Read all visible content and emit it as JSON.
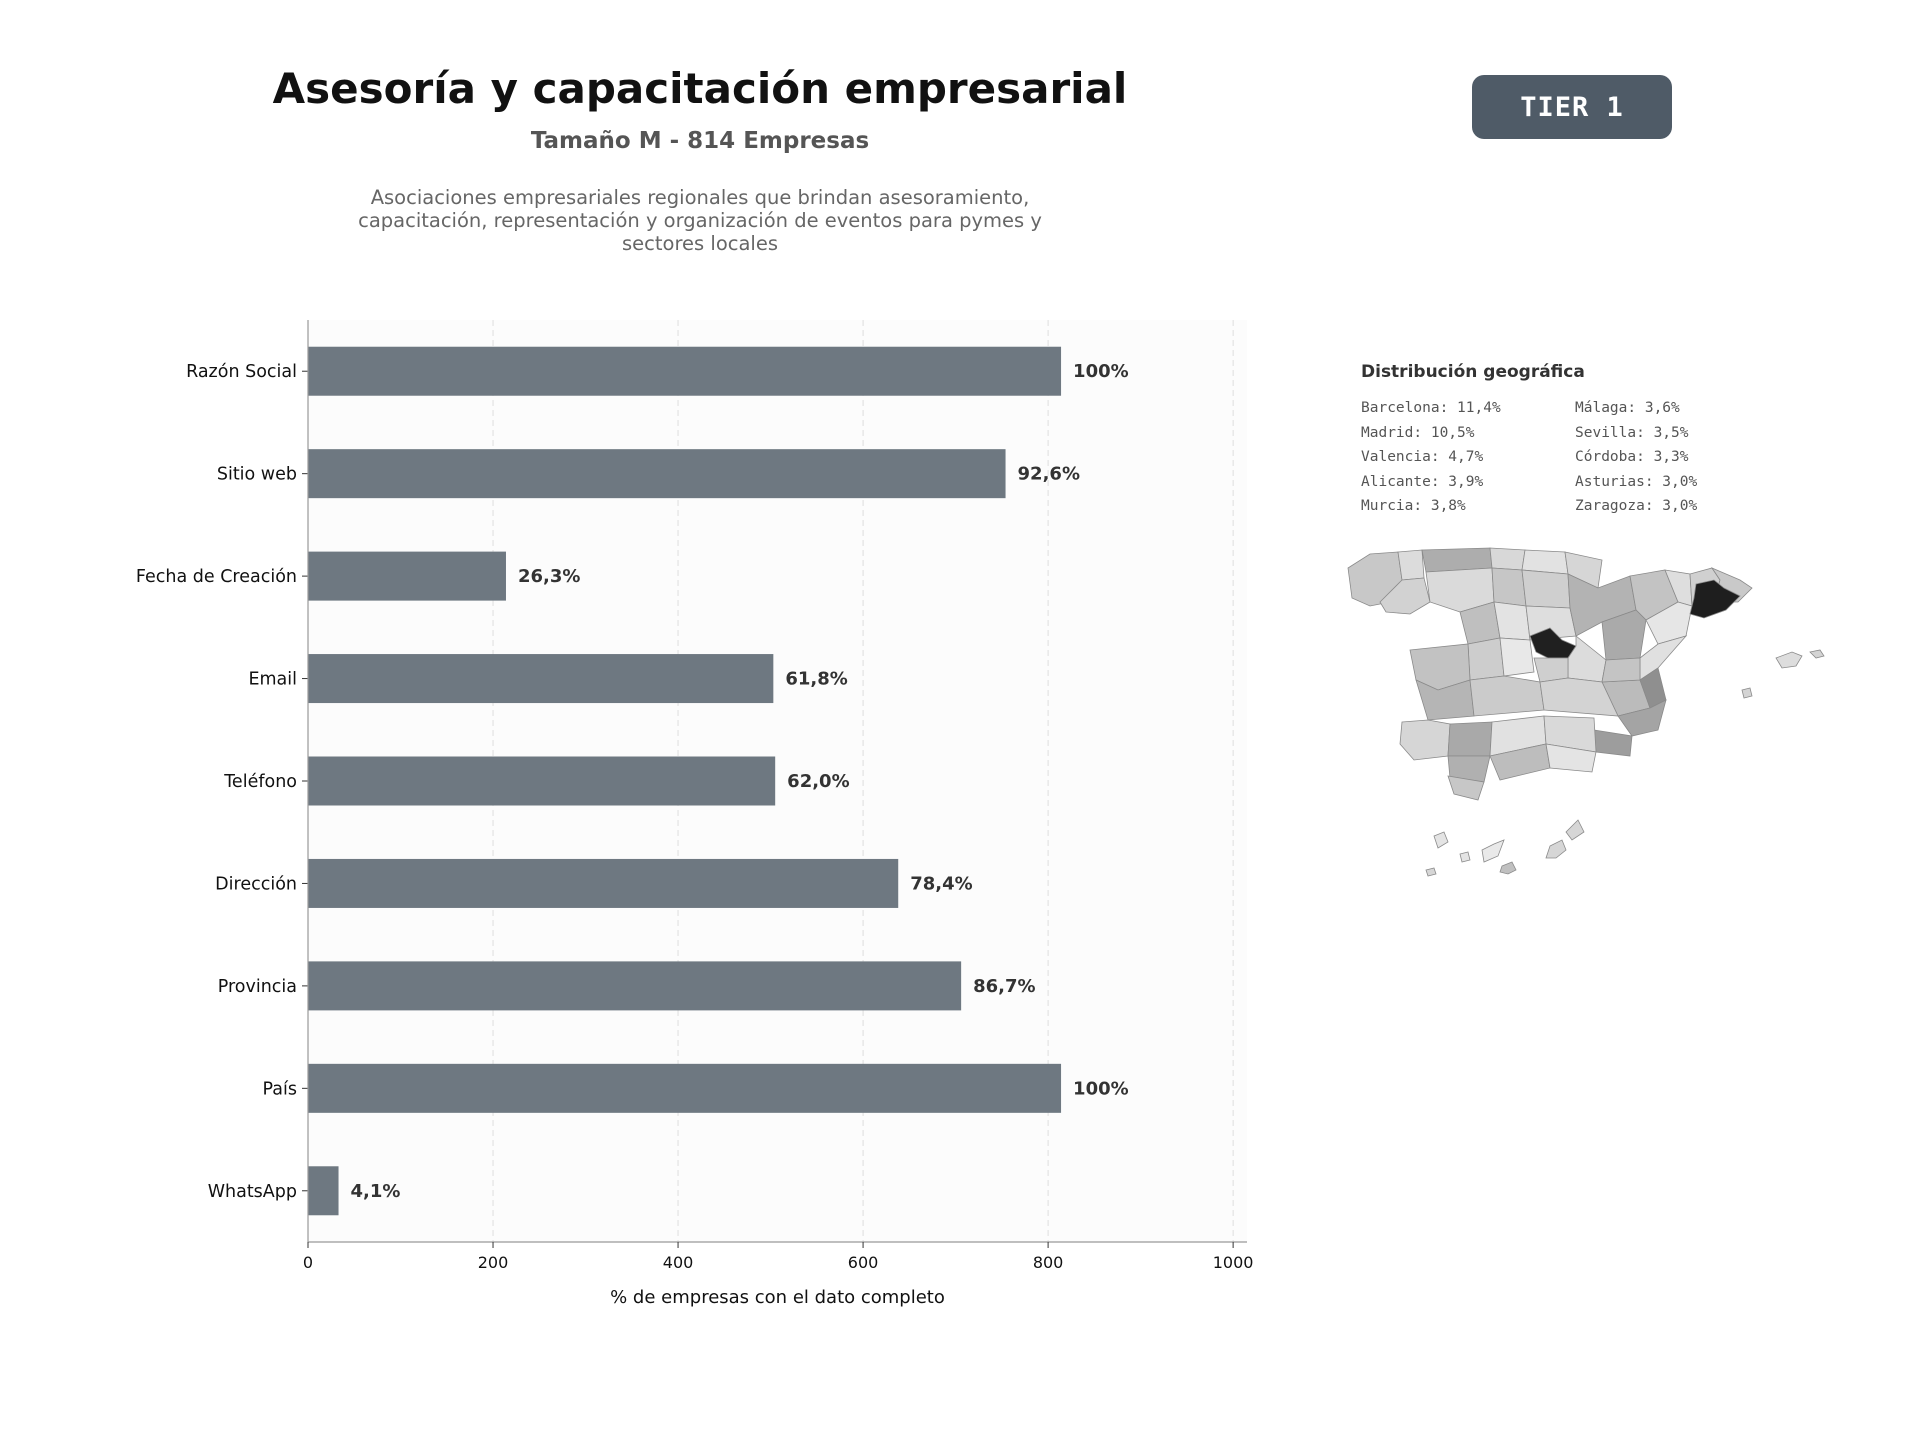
{
  "header": {
    "title": "Asesoría y capacitación empresarial",
    "subtitle": "Tamaño M - 814 Empresas",
    "description": "Asociaciones empresariales regionales que brindan asesoramiento, capacitación, representación y organización de eventos para pymes y sectores locales",
    "tier": "TIER 1"
  },
  "chart_data": {
    "type": "bar",
    "orientation": "horizontal",
    "categories": [
      "Razón Social",
      "Sitio web",
      "Fecha de Creación",
      "Email",
      "Teléfono",
      "Dirección",
      "Provincia",
      "País",
      "WhatsApp"
    ],
    "values": [
      814,
      754,
      214,
      503,
      505,
      638,
      706,
      814,
      33
    ],
    "value_labels": [
      "100%",
      "92,6%",
      "26,3%",
      "61,8%",
      "62,0%",
      "78,4%",
      "86,7%",
      "100%",
      "4,1%"
    ],
    "xlabel": "% de empresas con el dato completo",
    "ylabel": "",
    "xlim": [
      0,
      1015
    ],
    "xticks": [
      0,
      200,
      400,
      600,
      800,
      1000
    ],
    "grid": "vertical dashed",
    "bar_color": "#6e7881"
  },
  "geo": {
    "title": "Distribución geográfica",
    "items": [
      "Barcelona: 11,4%",
      "Málaga: 3,6%",
      "Madrid: 10,5%",
      "Sevilla: 3,5%",
      "Valencia: 4,7%",
      "Córdoba: 3,3%",
      "Alicante: 3,9%",
      "Asturias: 3,0%",
      "Murcia: 3,8%",
      "Zaragoza: 3,0%"
    ]
  }
}
